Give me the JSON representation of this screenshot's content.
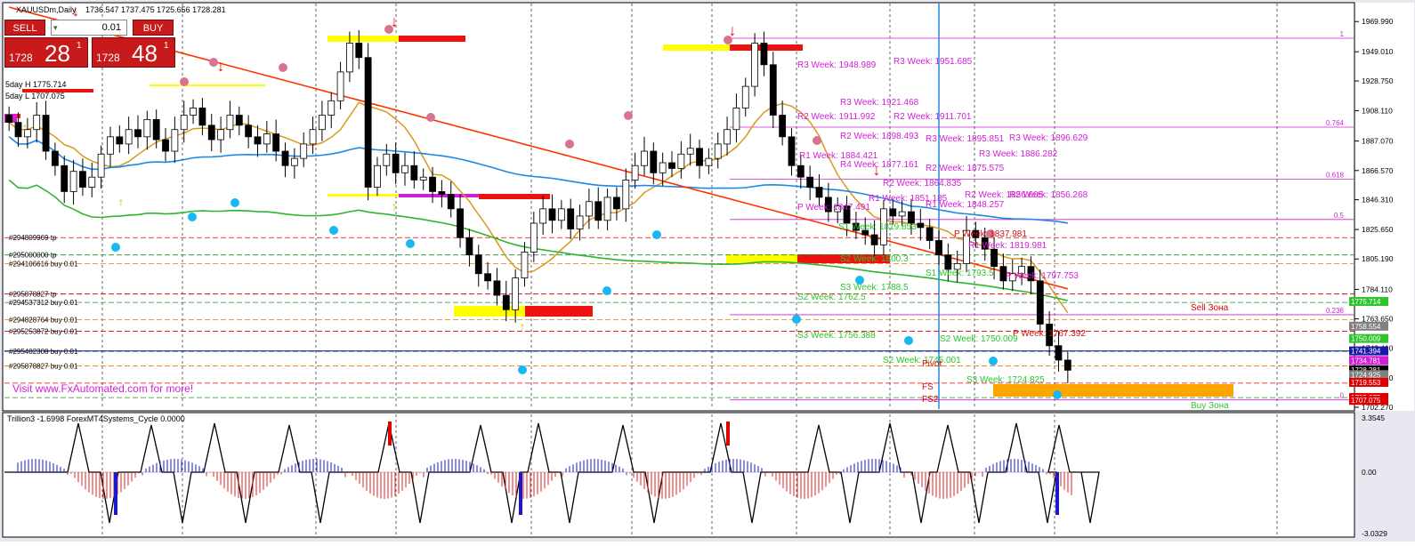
{
  "header": {
    "symbol": "XAUUSDm,Daily",
    "ohlc": "1736.547 1737.475 1725.656 1728.281"
  },
  "trade_panel": {
    "sell_label": "SELL",
    "buy_label": "BUY",
    "lot": "0.01",
    "sell_small": "1728",
    "sell_big": "28",
    "sell_sup": "1",
    "buy_small": "1728",
    "buy_big": "48",
    "buy_sup": "1"
  },
  "info_labels": [
    "5day H 1775.714",
    "5day L 1707.075"
  ],
  "visit_text": "Visit www.FxAutomated.com for more!",
  "order_labels": [
    {
      "text": "#294809969 tp",
      "price": 1820
    },
    {
      "text": "#295000000 tp",
      "price": 1808
    },
    {
      "text": "#294106616 buy 0.01",
      "price": 1802
    },
    {
      "text": "#295878827 tp",
      "price": 1781
    },
    {
      "text": "#294537312 buy 0.01",
      "price": 1775
    },
    {
      "text": "#294828764 buy 0.01",
      "price": 1763
    },
    {
      "text": "#295253872 buy 0.01",
      "price": 1755
    },
    {
      "text": "#295402308 buy 0.01",
      "price": 1741
    },
    {
      "text": "#295878827 buy 0.01",
      "price": 1731
    }
  ],
  "zone_labels": {
    "sell": "Sell Зона",
    "buy": "Buy Зона"
  },
  "pivot_labels": [
    {
      "text": "R3 Week: 1948.989",
      "color": "#d21fd6"
    },
    {
      "text": "R3 Week: 1951.685",
      "color": "#d21fd6"
    },
    {
      "text": "R3 Week: 1921.468",
      "color": "#d21fd6"
    },
    {
      "text": "R2 Week: 1911.992",
      "color": "#d21fd6"
    },
    {
      "text": "R2 Week: 1911.701",
      "color": "#d21fd6"
    },
    {
      "text": "R2 Week: 1898.493",
      "color": "#d21fd6"
    },
    {
      "text": "R3 Week: 1895.851",
      "color": "#d21fd6"
    },
    {
      "text": "R3 Week: 1896.629",
      "color": "#d21fd6"
    },
    {
      "text": "R3 Week: 1886.282",
      "color": "#d21fd6"
    },
    {
      "text": "R1 Week: 1884.421",
      "color": "#d21fd6"
    },
    {
      "text": "R4 Week: 1877.161",
      "color": "#d21fd6"
    },
    {
      "text": "R2 Week: 1875.575",
      "color": "#d21fd6"
    },
    {
      "text": "R2 Week: 1864.835",
      "color": "#d21fd6"
    },
    {
      "text": "R2 Week: 1856.605",
      "color": "#d21fd6"
    },
    {
      "text": "R2 Week: 1856.268",
      "color": "#d21fd6"
    },
    {
      "text": "P Week: 1847.491",
      "color": "#d21fd6"
    },
    {
      "text": "R1 Week: 1848.257",
      "color": "#d21fd6"
    },
    {
      "text": "R1 Week: 1851.185",
      "color": "#d21fd6"
    },
    {
      "text": "P Week: 1837.981",
      "color": "#cc1111"
    },
    {
      "text": "R1 Week: 1819.981",
      "color": "#d21fd6"
    },
    {
      "text": "P Week: 1797.753",
      "color": "#d21fd6"
    },
    {
      "text": "P Week: 1767.392",
      "color": "#cc1111"
    },
    {
      "text": "S1 Week: 1819.853",
      "color": "#2ec52e"
    },
    {
      "text": "S2 Week: 1800.3",
      "color": "#2ec52e"
    },
    {
      "text": "S1 Week: 1793.5",
      "color": "#2ec52e"
    },
    {
      "text": "S3 Week: 1788.5",
      "color": "#2ec52e"
    },
    {
      "text": "S2 Week: 1762.5",
      "color": "#2ec52e"
    },
    {
      "text": "S3 Week: 1756.388",
      "color": "#2ec52e"
    },
    {
      "text": "S2 Week: 1750.009",
      "color": "#2ec52e"
    },
    {
      "text": "S2 Week: 1745.001",
      "color": "#2ec52e"
    },
    {
      "text": "S3 Week: 1724.825",
      "color": "#2ec52e"
    }
  ],
  "fib_levels": [
    {
      "label": "1",
      "price": 1958.4
    },
    {
      "label": "0.764",
      "price": 1896.7
    },
    {
      "label": "0.618",
      "price": 1860.5
    },
    {
      "label": "0.5",
      "price": 1832.6
    },
    {
      "label": "0.236",
      "price": 1766.5
    },
    {
      "label": "0",
      "price": 1707.4
    }
  ],
  "axis_price_labels": [
    "1969.990",
    "1949.010",
    "1928.750",
    "1908.110",
    "1887.070",
    "1866.570",
    "1846.310",
    "1825.650",
    "1805.190",
    "1784.110",
    "1763.650",
    "1743.410",
    "1722.610",
    "1702.270"
  ],
  "right_price_tags": [
    {
      "text": "1775.714",
      "price": 1775.714,
      "color": "#2ec52e"
    },
    {
      "text": "1758.554",
      "price": 1758.554,
      "color": "#808080"
    },
    {
      "text": "1750.009",
      "price": 1750.009,
      "color": "#2ec52e"
    },
    {
      "text": "1741.394",
      "price": 1741.394,
      "color": "#1a1aa6"
    },
    {
      "text": "1734.781",
      "price": 1734.781,
      "color": "#d21fd6"
    },
    {
      "text": "1728.281",
      "price": 1728.281,
      "color": "#000000"
    },
    {
      "text": "1724.925",
      "price": 1724.925,
      "color": "#808080"
    },
    {
      "text": "1719.553",
      "price": 1719.553,
      "color": "#e00000"
    },
    {
      "text": "1709.075",
      "price": 1709.075,
      "color": "#e00000"
    },
    {
      "text": "1707.075",
      "price": 1707.075,
      "color": "#e00000"
    }
  ],
  "indicator": {
    "label": "Trillion3 -1.6998  ForexMT4Systems_Cycle 0.0000",
    "axis_labels": [
      "3.3545",
      "0.00",
      "-3.0329"
    ]
  },
  "colors": {
    "background": "#ffffff",
    "grid": "#000000",
    "bull_candle": "#ffffff",
    "bear_candle": "#000000",
    "ma_red": "#ff3300",
    "ma_orange": "#d9991a",
    "ma_blue": "#1e88e5",
    "ma_green": "#2fb52f",
    "zone_yellow": "#ffff00",
    "zone_red": "#ee1111",
    "zone_orange": "#ffa500",
    "pivot_magenta": "#d21fd6"
  },
  "chart_data": {
    "type": "candlestick",
    "title": "XAUUSDm,Daily",
    "ylim": [
      1702.27,
      1980
    ],
    "closes": [
      1900,
      1890,
      1895,
      1905,
      1880,
      1870,
      1852,
      1866,
      1855,
      1862,
      1878,
      1890,
      1885,
      1895,
      1890,
      1902,
      1888,
      1880,
      1895,
      1905,
      1910,
      1898,
      1888,
      1895,
      1905,
      1898,
      1890,
      1885,
      1892,
      1880,
      1870,
      1875,
      1885,
      1895,
      1905,
      1915,
      1935,
      1955,
      1945,
      1855,
      1870,
      1878,
      1865,
      1870,
      1860,
      1862,
      1852,
      1850,
      1840,
      1820,
      1808,
      1795,
      1790,
      1780,
      1770,
      1792,
      1810,
      1830,
      1840,
      1832,
      1840,
      1826,
      1835,
      1845,
      1832,
      1848,
      1840,
      1860,
      1870,
      1880,
      1865,
      1872,
      1868,
      1878,
      1882,
      1870,
      1875,
      1885,
      1895,
      1910,
      1925,
      1955,
      1940,
      1905,
      1890,
      1870,
      1862,
      1855,
      1848,
      1838,
      1842,
      1830,
      1825,
      1822,
      1815,
      1840,
      1835,
      1838,
      1830,
      1827,
      1818,
      1808,
      1798,
      1802,
      1825,
      1820,
      1812,
      1800,
      1790,
      1795,
      1800,
      1790,
      1760,
      1745,
      1735,
      1728
    ]
  }
}
